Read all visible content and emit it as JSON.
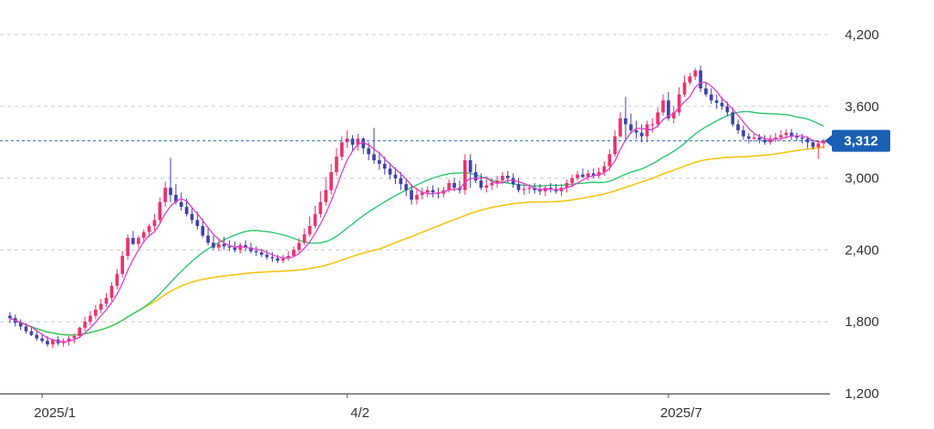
{
  "chart_data": {
    "type": "candlestick",
    "title": "",
    "xlabel": "",
    "ylabel": "",
    "ylim": [
      1200,
      4300
    ],
    "y_ticks": [
      "4,200",
      "3,600",
      "3,000",
      "2,400",
      "1,800",
      "1,200"
    ],
    "y_tick_values": [
      4200,
      3600,
      3000,
      2400,
      1800,
      1200
    ],
    "x_ticks": [
      {
        "label": "2025/1",
        "index": 6
      },
      {
        "label": "4/2",
        "index": 63
      },
      {
        "label": "2025/7",
        "index": 123
      }
    ],
    "grid": "horizontal dashed",
    "current_price": {
      "value": 3312,
      "label": "3,312"
    },
    "colors": {
      "up": "#f0306a",
      "down": "#3f3fb0",
      "ma_short": "#e040c8",
      "ma_mid": "#2ec870",
      "ma_long": "#f5c518",
      "price_line": "#2a6fb8",
      "price_badge": "#1a5fb4",
      "grid": "#cccccc"
    },
    "series": [
      {
        "type": "candlestick",
        "open": [
          1850,
          1830,
          1790,
          1760,
          1720,
          1690,
          1660,
          1640,
          1610,
          1650,
          1620,
          1640,
          1660,
          1680,
          1750,
          1800,
          1850,
          1900,
          1950,
          2000,
          2100,
          2200,
          2350,
          2500,
          2450,
          2500,
          2550,
          2600,
          2650,
          2800,
          2920,
          2860,
          2800,
          2760,
          2700,
          2650,
          2600,
          2520,
          2460,
          2420,
          2450,
          2430,
          2420,
          2400,
          2440,
          2420,
          2390,
          2380,
          2360,
          2340,
          2330,
          2310,
          2330,
          2350,
          2400,
          2460,
          2530,
          2600,
          2700,
          2800,
          2900,
          3050,
          3180,
          3300,
          3330,
          3280,
          3330,
          3250,
          3200,
          3150,
          3120,
          3080,
          3030,
          3000,
          2950,
          2900,
          2820,
          2860,
          2880,
          2900,
          2880,
          2870,
          2900,
          2960,
          2920,
          2900,
          3150,
          3050,
          2980,
          2920,
          2940,
          2960,
          2980,
          3020,
          3000,
          2950,
          2900,
          2910,
          2920,
          2900,
          2890,
          2920,
          2910,
          2890,
          2920,
          2960,
          3000,
          3030,
          3010,
          3040,
          3020,
          3050,
          3100,
          3200,
          3350,
          3500,
          3450,
          3400,
          3380,
          3350,
          3450,
          3450,
          3550,
          3650,
          3500,
          3550,
          3700,
          3800,
          3850,
          3900,
          3750,
          3700,
          3650,
          3630,
          3600,
          3550,
          3450,
          3400,
          3350,
          3330,
          3340,
          3320,
          3300,
          3330,
          3340,
          3360,
          3380,
          3350,
          3340,
          3330,
          3300,
          3260,
          3290
        ],
        "high": [
          1880,
          1860,
          1820,
          1790,
          1760,
          1730,
          1700,
          1680,
          1650,
          1680,
          1660,
          1680,
          1700,
          1760,
          1840,
          1890,
          1940,
          1990,
          2040,
          2130,
          2240,
          2390,
          2530,
          2560,
          2520,
          2570,
          2620,
          2700,
          2840,
          2970,
          3170,
          2950,
          2880,
          2830,
          2760,
          2720,
          2660,
          2590,
          2520,
          2490,
          2510,
          2480,
          2470,
          2460,
          2480,
          2460,
          2430,
          2410,
          2400,
          2380,
          2360,
          2360,
          2390,
          2430,
          2500,
          2580,
          2680,
          2770,
          2890,
          3010,
          3120,
          3250,
          3350,
          3400,
          3360,
          3370,
          3340,
          3300,
          3420,
          3220,
          3180,
          3130,
          3090,
          3050,
          3000,
          2950,
          2920,
          2920,
          2930,
          2940,
          2920,
          2930,
          2990,
          3000,
          2980,
          3200,
          3200,
          3120,
          3040,
          2990,
          3000,
          3020,
          3050,
          3060,
          3040,
          3000,
          2960,
          2950,
          2960,
          2950,
          2940,
          2960,
          2950,
          2950,
          2990,
          3030,
          3060,
          3080,
          3070,
          3080,
          3090,
          3140,
          3240,
          3400,
          3550,
          3680,
          3540,
          3480,
          3450,
          3480,
          3500,
          3590,
          3700,
          3720,
          3600,
          3760,
          3860,
          3880,
          3920,
          3940,
          3800,
          3750,
          3700,
          3680,
          3640,
          3590,
          3490,
          3440,
          3380,
          3380,
          3370,
          3360,
          3360,
          3380,
          3400,
          3410,
          3410,
          3380,
          3370,
          3350,
          3320,
          3320,
          3330
        ],
        "low": [
          1790,
          1760,
          1730,
          1700,
          1680,
          1640,
          1620,
          1590,
          1580,
          1600,
          1590,
          1600,
          1620,
          1660,
          1720,
          1770,
          1820,
          1870,
          1920,
          1970,
          2070,
          2170,
          2320,
          2440,
          2420,
          2460,
          2510,
          2560,
          2620,
          2760,
          2800,
          2780,
          2730,
          2680,
          2620,
          2570,
          2500,
          2440,
          2400,
          2390,
          2400,
          2390,
          2380,
          2370,
          2390,
          2370,
          2350,
          2340,
          2320,
          2300,
          2290,
          2290,
          2310,
          2340,
          2380,
          2440,
          2510,
          2580,
          2670,
          2770,
          2860,
          3020,
          3150,
          3250,
          3230,
          3230,
          3200,
          3150,
          3120,
          3070,
          3030,
          2990,
          2950,
          2900,
          2850,
          2780,
          2780,
          2820,
          2840,
          2840,
          2830,
          2840,
          2880,
          2890,
          2870,
          2860,
          2920,
          2960,
          2900,
          2880,
          2900,
          2920,
          2950,
          2960,
          2920,
          2880,
          2860,
          2870,
          2870,
          2860,
          2850,
          2880,
          2870,
          2850,
          2880,
          2920,
          2980,
          3000,
          2980,
          3000,
          3000,
          3020,
          3060,
          3180,
          3340,
          3320,
          3370,
          3330,
          3300,
          3300,
          3380,
          3420,
          3520,
          3480,
          3460,
          3520,
          3680,
          3780,
          3820,
          3720,
          3680,
          3620,
          3580,
          3570,
          3520,
          3430,
          3370,
          3320,
          3290,
          3300,
          3290,
          3280,
          3280,
          3300,
          3310,
          3330,
          3320,
          3310,
          3290,
          3250,
          3240,
          3160,
          3250
        ],
        "close": [
          1830,
          1790,
          1760,
          1720,
          1690,
          1660,
          1640,
          1610,
          1650,
          1620,
          1640,
          1660,
          1680,
          1750,
          1800,
          1850,
          1900,
          1950,
          2000,
          2100,
          2200,
          2350,
          2500,
          2450,
          2500,
          2550,
          2600,
          2650,
          2800,
          2920,
          2860,
          2800,
          2760,
          2700,
          2650,
          2600,
          2520,
          2460,
          2420,
          2450,
          2430,
          2420,
          2400,
          2440,
          2420,
          2390,
          2380,
          2360,
          2340,
          2330,
          2310,
          2330,
          2350,
          2400,
          2460,
          2530,
          2600,
          2700,
          2800,
          2900,
          3050,
          3180,
          3300,
          3330,
          3280,
          3330,
          3250,
          3200,
          3150,
          3120,
          3080,
          3030,
          3000,
          2950,
          2900,
          2820,
          2860,
          2880,
          2900,
          2880,
          2870,
          2900,
          2960,
          2920,
          2900,
          3150,
          3050,
          2980,
          2920,
          2940,
          2960,
          2980,
          3020,
          3000,
          2950,
          2900,
          2910,
          2920,
          2900,
          2890,
          2920,
          2910,
          2890,
          2920,
          2960,
          3000,
          3030,
          3010,
          3040,
          3020,
          3050,
          3100,
          3200,
          3350,
          3500,
          3450,
          3400,
          3380,
          3350,
          3450,
          3450,
          3550,
          3650,
          3500,
          3550,
          3700,
          3800,
          3850,
          3900,
          3750,
          3700,
          3650,
          3630,
          3600,
          3550,
          3450,
          3400,
          3350,
          3330,
          3340,
          3320,
          3300,
          3330,
          3340,
          3360,
          3380,
          3350,
          3340,
          3330,
          3300,
          3260,
          3290,
          3312
        ]
      }
    ]
  }
}
